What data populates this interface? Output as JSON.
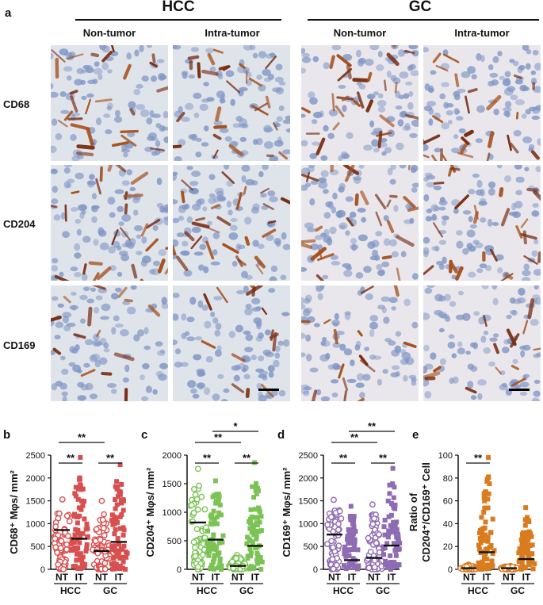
{
  "panel_a": {
    "letter": "a",
    "groups": [
      "HCC",
      "GC"
    ],
    "columns": [
      "Non-tumor",
      "Intra-tumor",
      "Non-tumor",
      "Intra-tumor"
    ],
    "rows": [
      "CD68",
      "CD204",
      "CD169"
    ]
  },
  "charts": [
    {
      "letter": "b",
      "ylabel": "CD68⁺ Mφs/ mm²",
      "color": "#d94f4f",
      "yticks": [
        "0",
        "500",
        "1000",
        "1500",
        "2000",
        "2500"
      ],
      "sig": [
        {
          "from": 0,
          "to": 2,
          "text": "**",
          "level": 1
        },
        {
          "from": 0,
          "to": 1,
          "text": "**",
          "level": 0
        },
        {
          "from": 2,
          "to": 3,
          "text": "**",
          "level": 0
        }
      ]
    },
    {
      "letter": "c",
      "ylabel": "CD204⁺ Mφs/ mm²",
      "color": "#7cc355",
      "yticks": [
        "0",
        "500",
        "1000",
        "1500",
        "2000"
      ],
      "sig": [
        {
          "from": 0,
          "to": 2,
          "text": "**",
          "level": 1
        },
        {
          "from": 1,
          "to": 3,
          "text": "*",
          "level": 2
        },
        {
          "from": 0,
          "to": 1,
          "text": "**",
          "level": 0
        },
        {
          "from": 2,
          "to": 3,
          "text": "**",
          "level": 0
        }
      ]
    },
    {
      "letter": "d",
      "ylabel": "CD169⁺ Mφs/ mm²",
      "color": "#8e6bb3",
      "yticks": [
        "0",
        "500",
        "1000",
        "1500",
        "2000",
        "2500"
      ],
      "sig": [
        {
          "from": 1,
          "to": 3,
          "text": "**",
          "level": 2
        },
        {
          "from": 0,
          "to": 2,
          "text": "**",
          "level": 1
        },
        {
          "from": 0,
          "to": 1,
          "text": "**",
          "level": 0
        },
        {
          "from": 2,
          "to": 3,
          "text": "**",
          "level": 0
        }
      ]
    },
    {
      "letter": "e",
      "ylabel_line1": "Ratio of",
      "ylabel_line2": "CD204⁺/CD169⁺ Cell",
      "color": "#d97b1f",
      "yticks": [
        "0",
        "20",
        "40",
        "60",
        "80",
        "100"
      ],
      "sig": [
        {
          "from": 0,
          "to": 1,
          "text": "**",
          "level": 0
        }
      ]
    }
  ],
  "chart_data": [
    {
      "type": "scatter",
      "categories": [
        "NT",
        "IT",
        "NT",
        "IT"
      ],
      "groups": [
        "HCC",
        "GC"
      ],
      "ylabel": "CD68⁺ Mφs/ mm²",
      "ylim": [
        0,
        2500
      ],
      "series": [
        {
          "values": [
            860,
            670,
            400,
            600
          ]
        }
      ],
      "medians": [
        860,
        670,
        400,
        600
      ],
      "maxima": [
        1530,
        2450,
        1500,
        2290
      ],
      "annotations": [
        "**",
        "**",
        "**"
      ]
    },
    {
      "type": "scatter",
      "categories": [
        "NT",
        "IT",
        "NT",
        "IT"
      ],
      "groups": [
        "HCC",
        "GC"
      ],
      "ylabel": "CD204⁺ Mφs/ mm²",
      "ylim": [
        0,
        2000
      ],
      "series": [
        {
          "values": [
            820,
            520,
            60,
            410
          ]
        }
      ],
      "medians": [
        820,
        520,
        60,
        410
      ],
      "maxima": [
        1760,
        1550,
        250,
        1870
      ],
      "annotations": [
        "**",
        "*",
        "**",
        "**"
      ]
    },
    {
      "type": "scatter",
      "categories": [
        "NT",
        "IT",
        "NT",
        "IT"
      ],
      "groups": [
        "HCC",
        "GC"
      ],
      "ylabel": "CD169⁺ Mφs/ mm²",
      "ylim": [
        0,
        2500
      ],
      "series": [
        {
          "values": [
            760,
            200,
            250,
            520
          ]
        }
      ],
      "medians": [
        760,
        200,
        250,
        520
      ],
      "maxima": [
        1520,
        1380,
        1420,
        2210
      ],
      "annotations": [
        "**",
        "**",
        "**",
        "**"
      ]
    },
    {
      "type": "scatter",
      "categories": [
        "NT",
        "IT",
        "NT",
        "IT"
      ],
      "groups": [
        "HCC",
        "GC"
      ],
      "ylabel": "Ratio of CD204⁺/CD169⁺ Cell",
      "ylim": [
        0,
        100
      ],
      "series": [
        {
          "values": [
            1,
            15,
            1,
            9
          ]
        }
      ],
      "medians": [
        1,
        15,
        1,
        9
      ],
      "maxima": [
        4,
        98,
        3,
        54
      ],
      "annotations": [
        "**"
      ]
    }
  ],
  "xaxis": {
    "categories": [
      "NT",
      "IT",
      "NT",
      "IT"
    ],
    "groups": [
      "HCC",
      "GC"
    ]
  }
}
